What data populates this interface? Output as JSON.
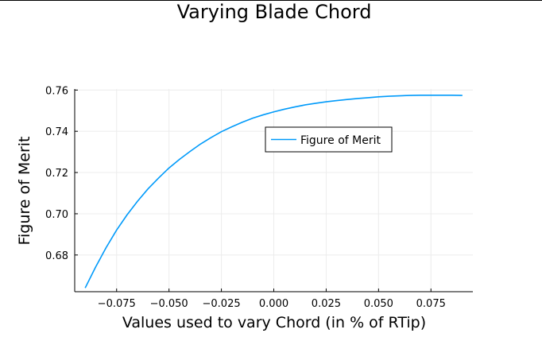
{
  "chart_data": {
    "type": "line",
    "title": "Varying Blade Chord",
    "xlabel": "Values used to vary Chord (in % of RTip)",
    "ylabel": "Figure of Merit",
    "xlim": [
      -0.095,
      0.095
    ],
    "ylim": [
      0.6622,
      0.7605
    ],
    "xticks": [
      -0.075,
      -0.05,
      -0.025,
      0.0,
      0.025,
      0.05,
      0.075
    ],
    "xtick_labels": [
      "−0.075",
      "−0.050",
      "−0.025",
      "0.000",
      "0.025",
      "0.050",
      "0.075"
    ],
    "yticks": [
      0.68,
      0.7,
      0.72,
      0.74,
      0.76
    ],
    "ytick_labels": [
      "0.68",
      "0.70",
      "0.72",
      "0.74",
      "0.76"
    ],
    "grid": true,
    "legend_position": "top-right",
    "series": [
      {
        "name": "Figure of Merit",
        "color": "#009afa",
        "x": [
          -0.09,
          -0.085,
          -0.08,
          -0.075,
          -0.07,
          -0.065,
          -0.06,
          -0.055,
          -0.05,
          -0.045,
          -0.04,
          -0.035,
          -0.03,
          -0.025,
          -0.02,
          -0.015,
          -0.01,
          -0.005,
          0.0,
          0.005,
          0.01,
          0.015,
          0.02,
          0.025,
          0.03,
          0.035,
          0.04,
          0.045,
          0.05,
          0.055,
          0.06,
          0.065,
          0.07,
          0.075,
          0.08,
          0.085,
          0.09
        ],
        "y": [
          0.664,
          0.6742,
          0.6836,
          0.6921,
          0.6995,
          0.7061,
          0.7121,
          0.7173,
          0.7222,
          0.7264,
          0.7302,
          0.7338,
          0.7369,
          0.7398,
          0.7422,
          0.7444,
          0.7464,
          0.748,
          0.7494,
          0.7507,
          0.7518,
          0.7528,
          0.7536,
          0.7543,
          0.7549,
          0.7554,
          0.7559,
          0.7563,
          0.7567,
          0.757,
          0.7572,
          0.7574,
          0.7575,
          0.7575,
          0.7575,
          0.7575,
          0.7574
        ]
      }
    ]
  }
}
